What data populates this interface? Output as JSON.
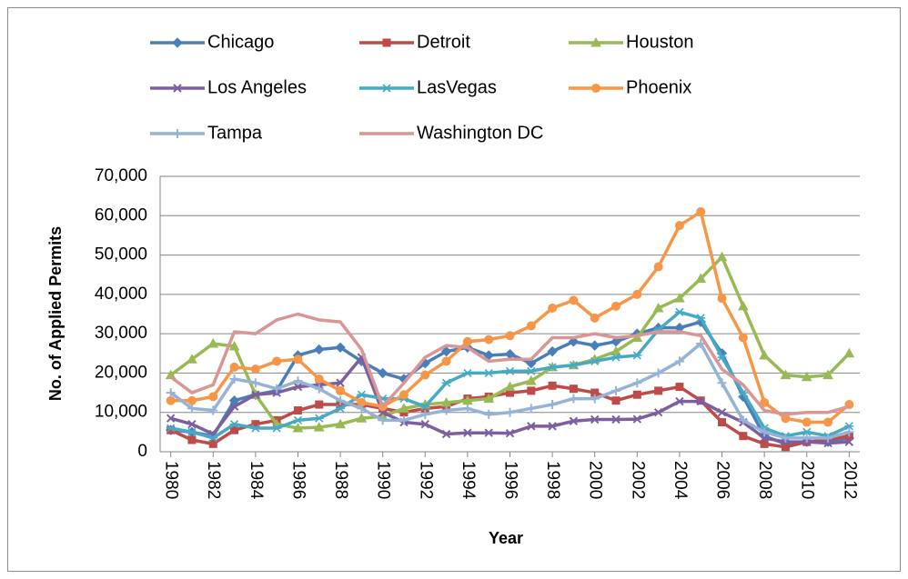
{
  "chart_data": {
    "type": "line",
    "x_label": "Year",
    "y_label": "No. of Applied Permits",
    "x": [
      1980,
      1981,
      1982,
      1983,
      1984,
      1985,
      1986,
      1987,
      1988,
      1989,
      1990,
      1991,
      1992,
      1993,
      1994,
      1995,
      1996,
      1997,
      1998,
      1999,
      2000,
      2001,
      2002,
      2003,
      2004,
      2005,
      2006,
      2007,
      2008,
      2009,
      2010,
      2011,
      2012
    ],
    "xlim": [
      1979.5,
      2012.5
    ],
    "xticks": [
      1980,
      1982,
      1984,
      1986,
      1988,
      1990,
      1992,
      1994,
      1996,
      1998,
      2000,
      2002,
      2004,
      2006,
      2008,
      2010,
      2012
    ],
    "ylim": [
      0,
      70000
    ],
    "yticks": [
      0,
      {
        "value": 10000,
        "label": "10,000"
      },
      {
        "value": 20000,
        "label": "20,000"
      },
      {
        "value": 30000,
        "label": "30,000"
      },
      {
        "value": 40000,
        "label": "40,000"
      },
      {
        "value": 50000,
        "label": "50,000"
      },
      {
        "value": 60000,
        "label": "60,000"
      },
      {
        "value": 70000,
        "label": "70,000"
      }
    ],
    "grid": true,
    "legend_position": "top",
    "series": [
      {
        "name": "Chicago",
        "color": "#4a7ebb",
        "marker": "diamond",
        "values": [
          5500,
          5000,
          4000,
          13000,
          14500,
          15500,
          24500,
          26000,
          26500,
          23000,
          20000,
          18500,
          22500,
          25500,
          26500,
          24500,
          24800,
          22500,
          25500,
          28000,
          27000,
          28000,
          30000,
          31500,
          31500,
          33000,
          25000,
          14000,
          4000,
          2000,
          2500,
          2500,
          3500
        ]
      },
      {
        "name": "Detroit",
        "color": "#be4b48",
        "marker": "square",
        "values": [
          5500,
          3000,
          2000,
          5500,
          7000,
          8000,
          10500,
          12000,
          12000,
          12000,
          11000,
          10000,
          11000,
          11500,
          13500,
          14000,
          15000,
          15500,
          16800,
          16000,
          15000,
          13000,
          14500,
          15500,
          16500,
          13000,
          7500,
          4000,
          2000,
          1200,
          2500,
          3000,
          4000
        ]
      },
      {
        "name": "Houston",
        "color": "#98b954",
        "marker": "triangle",
        "values": [
          19500,
          23500,
          27500,
          26800,
          14500,
          7000,
          6000,
          6200,
          7000,
          8500,
          9000,
          11000,
          12000,
          12500,
          13000,
          13500,
          16500,
          18000,
          21500,
          22000,
          23500,
          25500,
          29000,
          36500,
          39000,
          44000,
          49500,
          37000,
          24500,
          19500,
          19000,
          19500,
          25000
        ]
      },
      {
        "name": "Los Angeles",
        "color": "#7d5fa0",
        "marker": "x",
        "values": [
          8500,
          7000,
          4500,
          11500,
          14500,
          15000,
          16500,
          17000,
          17500,
          24000,
          10000,
          7500,
          7000,
          4500,
          4800,
          4800,
          4700,
          6500,
          6500,
          7800,
          8200,
          8200,
          8300,
          10000,
          12800,
          12800,
          10000,
          7500,
          3500,
          2500,
          2500,
          2200,
          2500
        ]
      },
      {
        "name": "LasVegas",
        "color": "#46aac5",
        "marker": "star",
        "values": [
          6000,
          5000,
          3500,
          7000,
          6000,
          6000,
          8000,
          8500,
          11000,
          14500,
          13500,
          13500,
          11500,
          17500,
          20000,
          20000,
          20500,
          20500,
          21500,
          22000,
          23000,
          24000,
          24500,
          31000,
          35500,
          34000,
          24000,
          15000,
          6000,
          4000,
          5000,
          4000,
          6500
        ]
      },
      {
        "name": "Phoenix",
        "color": "#f79646",
        "marker": "circle",
        "values": [
          13000,
          13000,
          14000,
          21500,
          21000,
          23000,
          23500,
          18500,
          15500,
          12500,
          11500,
          14500,
          19500,
          23000,
          28000,
          28500,
          29500,
          32000,
          36500,
          38500,
          34000,
          37000,
          40000,
          47000,
          57500,
          61000,
          39000,
          29000,
          12500,
          8500,
          7500,
          7500,
          12000
        ]
      },
      {
        "name": "Tampa",
        "color": "#95b3d7",
        "marker": "plus",
        "values": [
          15000,
          11000,
          10500,
          18500,
          17500,
          16000,
          18000,
          16000,
          13000,
          11000,
          8000,
          8000,
          9500,
          10500,
          11000,
          9500,
          10000,
          11000,
          12000,
          13500,
          13500,
          15500,
          17500,
          20000,
          23000,
          27500,
          17500,
          8000,
          5000,
          3500,
          3500,
          3500,
          5000
        ]
      },
      {
        "name": "Washington DC",
        "color": "#d99694",
        "marker": "none",
        "values": [
          19000,
          15000,
          17000,
          30500,
          30000,
          33500,
          35000,
          33500,
          33000,
          26000,
          11500,
          17500,
          24000,
          27000,
          26500,
          23000,
          23500,
          23500,
          29000,
          29000,
          30000,
          29000,
          29500,
          30500,
          30500,
          29500,
          21000,
          17000,
          10500,
          9500,
          10000,
          10000,
          11500
        ]
      }
    ]
  }
}
